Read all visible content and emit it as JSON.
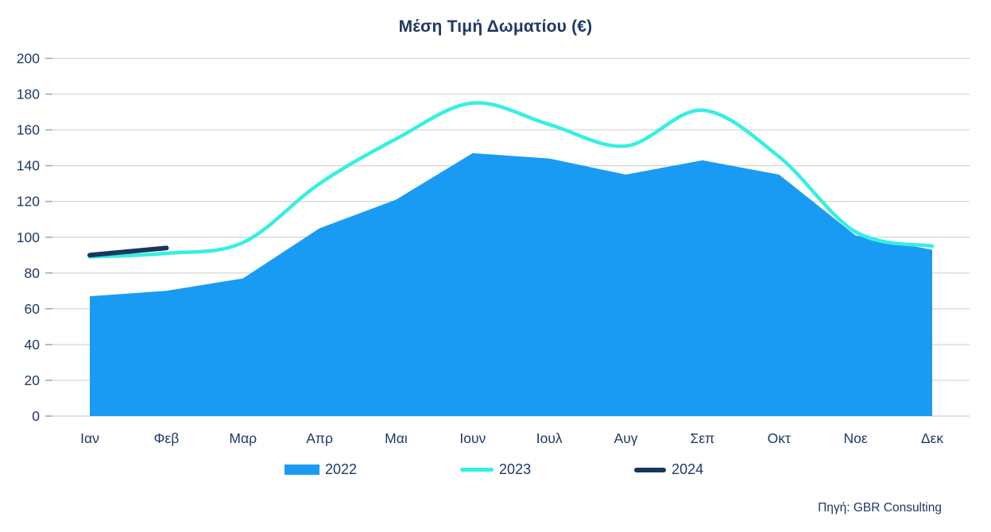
{
  "title": "Μέση Τιμή Δωματίου (€)",
  "source": "Πηγή: GBR Consulting",
  "colors": {
    "area_2022": "#1A9BF3",
    "line_2023": "#36EFE3",
    "line_2024": "#17375E",
    "text_navy": "#1F3864",
    "gridline": "#D9D9D9",
    "tick": "#ABABAB"
  },
  "legend": [
    {
      "label": "2022",
      "marker": "area-swatch"
    },
    {
      "label": "2023",
      "marker": "line-swatch"
    },
    {
      "label": "2024",
      "marker": "line-swatch"
    }
  ],
  "chart_data": {
    "type": "area",
    "title": "Μέση Τιμή Δωματίου (€)",
    "categories": [
      "Ιαν",
      "Φεβ",
      "Μαρ",
      "Απρ",
      "Μαι",
      "Ιουν",
      "Ιουλ",
      "Αυγ",
      "Σεπ",
      "Οκτ",
      "Νοε",
      "Δεκ"
    ],
    "series": [
      {
        "name": "2022",
        "type": "area",
        "smooth": false,
        "values": [
          67,
          70,
          77,
          105,
          121,
          147,
          144,
          135,
          143,
          135,
          101,
          93
        ]
      },
      {
        "name": "2023",
        "type": "line",
        "smooth": true,
        "values": [
          89,
          91,
          97,
          130,
          155,
          175,
          163,
          151,
          171,
          145,
          103,
          95
        ]
      },
      {
        "name": "2024",
        "type": "line",
        "smooth": false,
        "values": [
          90,
          94,
          null,
          null,
          null,
          null,
          null,
          null,
          null,
          null,
          null,
          null
        ]
      }
    ],
    "xlabel": "",
    "ylabel": "",
    "ylim": [
      0,
      200
    ],
    "ytick_step": 20,
    "grid": true,
    "legend_position": "bottom"
  }
}
